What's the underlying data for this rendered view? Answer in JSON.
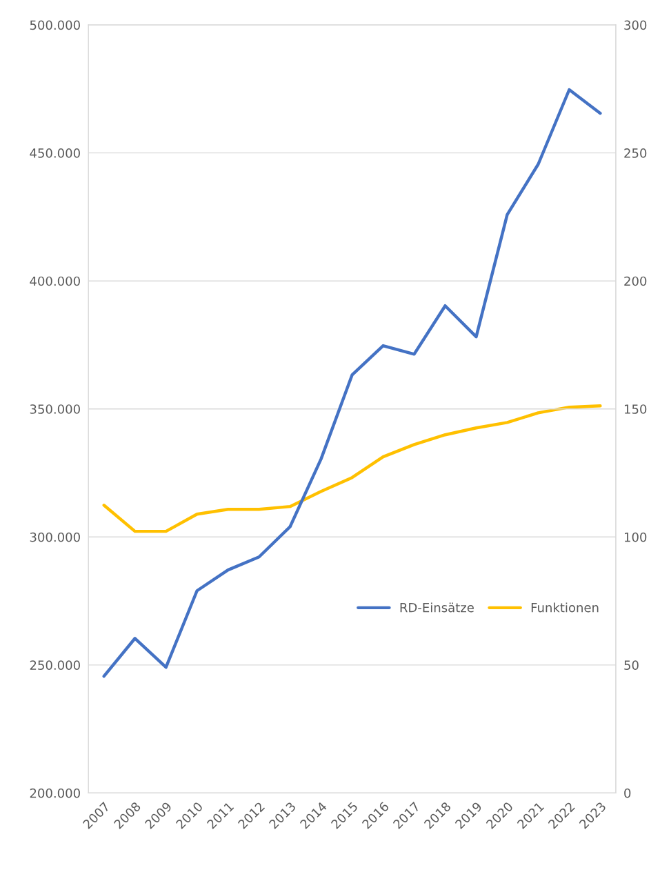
{
  "chart_data": {
    "type": "line",
    "categories": [
      "2007",
      "2008",
      "2009",
      "2010",
      "2011",
      "2012",
      "2013",
      "2014",
      "2015",
      "2016",
      "2017",
      "2018",
      "2019",
      "2020",
      "2021",
      "2022",
      "2023"
    ],
    "series": [
      {
        "name": "RD-Einsätze",
        "color": "#4472c4",
        "values": [
          245600,
          260400,
          249100,
          279000,
          287100,
          292200,
          304000,
          330500,
          363300,
          374700,
          371400,
          390300,
          378200,
          425900,
          445600,
          474700,
          465500
        ]
      },
      {
        "name": "Funktionen",
        "color": "#ffc000",
        "axis": "y2",
        "values": [
          112.4,
          102.2,
          102.2,
          108.9,
          110.8,
          110.8,
          111.9,
          117.8,
          123.2,
          131.3,
          136.1,
          139.9,
          142.6,
          144.7,
          148.5,
          150.7,
          151.2
        ]
      }
    ],
    "ylim": [
      200000,
      500000
    ],
    "yticks": [
      {
        "value": 200000,
        "label": "200.000"
      },
      {
        "value": 250000,
        "label": "250.000"
      },
      {
        "value": 300000,
        "label": "300.000"
      },
      {
        "value": 350000,
        "label": "350.000"
      },
      {
        "value": 400000,
        "label": "400.000"
      },
      {
        "value": 450000,
        "label": "450.000"
      },
      {
        "value": 500000,
        "label": "500.000"
      }
    ],
    "y2lim": [
      0,
      300
    ],
    "y2ticks": [
      0,
      50,
      100,
      150,
      200,
      250,
      300
    ],
    "grid": "y",
    "legend": "right",
    "marker": "none",
    "line_style": "solid"
  }
}
